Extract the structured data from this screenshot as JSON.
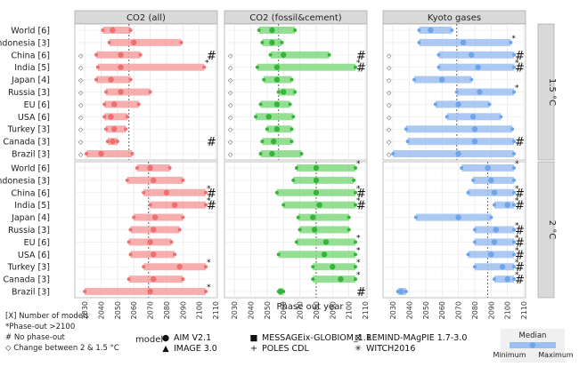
{
  "chart_data": {
    "type": "range-dot",
    "xlabel": "Phase out year",
    "xlim": [
      2025,
      2110
    ],
    "x_ticks": [
      2030,
      2040,
      2050,
      2060,
      2070,
      2080,
      2090,
      2100,
      2110
    ],
    "columns": [
      "CO2 (all)",
      "CO2 (fossil&cement)",
      "Kyoto gases"
    ],
    "column_colors": [
      "#f4a0a0",
      "#82d982",
      "#9cc0f0"
    ],
    "column_marker_colors": [
      "#ee6f6f",
      "#35b535",
      "#6da4ea"
    ],
    "panel_rows": [
      {
        "name": "1.5 °C",
        "countries": [
          "World [6]",
          "Indonesia [3]",
          "China [6]",
          "India [5]",
          "Japan [4]",
          "Russia [3]",
          "EU [6]",
          "USA [6]",
          "Turkey [3]",
          "Canada [3]",
          "Brazil [3]"
        ],
        "medians": [
          2057,
          2057,
          2069
        ],
        "cells": [
          [
            {
              "min": 2041,
              "max": 2058,
              "median": 2047,
              "no_phaseout": false,
              "changed": false
            },
            {
              "min": 2045,
              "max": 2089,
              "median": 2060,
              "no_phaseout": false,
              "changed": false
            },
            {
              "min": 2037,
              "max": 2064,
              "median": 2052,
              "no_phaseout": false,
              "changed": true
            },
            {
              "min": 2038,
              "max": 2103,
              "median": 2052,
              "no_phaseout": false,
              "changed": true,
              "phaseout_after_2100": true
            },
            {
              "min": 2037,
              "max": 2058,
              "median": 2046,
              "no_phaseout": false,
              "changed": true
            },
            {
              "min": 2043,
              "max": 2070,
              "median": 2052,
              "no_phaseout": false,
              "changed": true
            },
            {
              "min": 2042,
              "max": 2063,
              "median": 2048,
              "no_phaseout": false,
              "changed": true
            },
            {
              "min": 2042,
              "max": 2056,
              "median": 2046,
              "no_phaseout": false,
              "changed": true
            },
            {
              "min": 2043,
              "max": 2055,
              "median": 2048,
              "no_phaseout": false,
              "changed": true
            },
            {
              "min": 2044,
              "max": 2050,
              "median": 2047,
              "no_phaseout": false,
              "changed": true
            },
            {
              "min": 2031,
              "max": 2059,
              "median": 2040,
              "no_phaseout": false,
              "changed": true
            }
          ],
          [
            {
              "min": 2045,
              "max": 2067,
              "median": 2053,
              "no_phaseout": false,
              "changed": false
            },
            {
              "min": 2047,
              "max": 2059,
              "median": 2053,
              "no_phaseout": false,
              "changed": false
            },
            {
              "min": 2052,
              "max": 2088,
              "median": 2060,
              "no_phaseout": false,
              "changed": true
            },
            {
              "min": 2044,
              "max": 2104,
              "median": 2056,
              "no_phaseout": false,
              "changed": true,
              "phaseout_after_2100": true
            },
            {
              "min": 2048,
              "max": 2065,
              "median": 2056,
              "no_phaseout": false,
              "changed": true
            },
            {
              "min": 2057,
              "max": 2067,
              "median": 2060,
              "no_phaseout": false,
              "changed": true
            },
            {
              "min": 2046,
              "max": 2064,
              "median": 2056,
              "no_phaseout": false,
              "changed": true
            },
            {
              "min": 2043,
              "max": 2066,
              "median": 2051,
              "no_phaseout": false,
              "changed": true
            },
            {
              "min": 2050,
              "max": 2065,
              "median": 2056,
              "no_phaseout": false,
              "changed": true
            },
            {
              "min": 2047,
              "max": 2065,
              "median": 2054,
              "no_phaseout": false,
              "changed": true
            },
            {
              "min": 2046,
              "max": 2071,
              "median": 2053,
              "no_phaseout": false,
              "changed": true
            }
          ],
          [
            {
              "min": 2046,
              "max": 2066,
              "median": 2053,
              "no_phaseout": false,
              "changed": false
            },
            {
              "min": 2046,
              "max": 2102,
              "median": 2073,
              "no_phaseout": false,
              "changed": false,
              "phaseout_after_2100": true
            },
            {
              "min": 2058,
              "max": 2104,
              "median": 2078,
              "no_phaseout": false,
              "changed": true
            },
            {
              "min": 2058,
              "max": 2104,
              "median": 2082,
              "no_phaseout": false,
              "changed": true,
              "phaseout_after_2100": true
            },
            {
              "min": 2043,
              "max": 2078,
              "median": 2060,
              "no_phaseout": false,
              "changed": true
            },
            {
              "min": 2069,
              "max": 2104,
              "median": 2083,
              "no_phaseout": false,
              "changed": true,
              "phaseout_after_2100": true
            },
            {
              "min": 2056,
              "max": 2089,
              "median": 2070,
              "no_phaseout": false,
              "changed": true
            },
            {
              "min": 2063,
              "max": 2096,
              "median": 2079,
              "no_phaseout": false,
              "changed": true
            },
            {
              "min": 2038,
              "max": 2103,
              "median": 2080,
              "no_phaseout": false,
              "changed": true
            },
            {
              "min": 2039,
              "max": 2104,
              "median": 2080,
              "no_phaseout": false,
              "changed": true
            },
            {
              "min": 2030,
              "max": 2104,
              "median": 2070,
              "no_phaseout": false,
              "changed": true
            }
          ]
        ],
        "no_phaseout_marks": [
          "China [6]|CO2 (all)",
          "Canada [3]|CO2 (all)",
          "India [5]|CO2 (fossil&cement)",
          "China [6]|CO2 (fossil&cement)",
          "China [6]|Kyoto gases",
          "India [5]|Kyoto gases",
          "Canada [3]|Kyoto gases"
        ]
      },
      {
        "name": "2 °C",
        "countries": [
          "World [6]",
          "Indonesia [3]",
          "China [6]",
          "India [5]",
          "Japan [4]",
          "Russia [3]",
          "EU [6]",
          "USA [6]",
          "Turkey [3]",
          "Canada [3]",
          "Brazil [3]"
        ],
        "medians": [
          2069,
          2080,
          2088
        ],
        "cells": [
          [
            {
              "min": 2062,
              "max": 2082,
              "median": 2070,
              "no_phaseout": false,
              "changed": false
            },
            {
              "min": 2056,
              "max": 2090,
              "median": 2072,
              "no_phaseout": false,
              "changed": false
            },
            {
              "min": 2066,
              "max": 2104,
              "median": 2080,
              "no_phaseout": false,
              "changed": false,
              "phaseout_after_2100": true
            },
            {
              "min": 2070,
              "max": 2104,
              "median": 2085,
              "no_phaseout": false,
              "changed": false,
              "phaseout_after_2100": true
            },
            {
              "min": 2060,
              "max": 2090,
              "median": 2073,
              "no_phaseout": false,
              "changed": false
            },
            {
              "min": 2058,
              "max": 2088,
              "median": 2072,
              "no_phaseout": false,
              "changed": false
            },
            {
              "min": 2057,
              "max": 2083,
              "median": 2070,
              "no_phaseout": false,
              "changed": false
            },
            {
              "min": 2058,
              "max": 2085,
              "median": 2072,
              "no_phaseout": false,
              "changed": false
            },
            {
              "min": 2066,
              "max": 2104,
              "median": 2088,
              "no_phaseout": false,
              "changed": false,
              "phaseout_after_2100": true
            },
            {
              "min": 2057,
              "max": 2090,
              "median": 2072,
              "no_phaseout": false,
              "changed": false
            },
            {
              "min": 2030,
              "max": 2104,
              "median": 2070,
              "no_phaseout": false,
              "changed": false,
              "phaseout_after_2100": true
            }
          ],
          [
            {
              "min": 2068,
              "max": 2104,
              "median": 2080,
              "no_phaseout": false,
              "changed": false,
              "phaseout_after_2100": true
            },
            {
              "min": 2066,
              "max": 2103,
              "median": 2080,
              "no_phaseout": false,
              "changed": false
            },
            {
              "min": 2056,
              "max": 2104,
              "median": 2080,
              "no_phaseout": false,
              "changed": false,
              "phaseout_after_2100": true
            },
            {
              "min": 2060,
              "max": 2104,
              "median": 2082,
              "no_phaseout": false,
              "changed": false,
              "phaseout_after_2100": true
            },
            {
              "min": 2069,
              "max": 2100,
              "median": 2078,
              "no_phaseout": false,
              "changed": false
            },
            {
              "min": 2070,
              "max": 2100,
              "median": 2079,
              "no_phaseout": false,
              "changed": false
            },
            {
              "min": 2068,
              "max": 2104,
              "median": 2086,
              "no_phaseout": false,
              "changed": false,
              "phaseout_after_2100": true
            },
            {
              "min": 2057,
              "max": 2104,
              "median": 2085,
              "no_phaseout": false,
              "changed": false,
              "phaseout_after_2100": true
            },
            {
              "min": 2078,
              "max": 2104,
              "median": 2090,
              "no_phaseout": false,
              "changed": false,
              "phaseout_after_2100": true
            },
            {
              "min": 2078,
              "max": 2104,
              "median": 2095,
              "no_phaseout": false,
              "changed": false,
              "phaseout_after_2100": true
            },
            {
              "min": 2057,
              "max": 2060,
              "median": 2058,
              "no_phaseout": false,
              "changed": false
            }
          ],
          [
            {
              "min": 2072,
              "max": 2104,
              "median": 2088,
              "no_phaseout": false,
              "changed": false,
              "phaseout_after_2100": true
            },
            {
              "min": 2079,
              "max": 2104,
              "median": 2090,
              "no_phaseout": false,
              "changed": false
            },
            {
              "min": 2076,
              "max": 2104,
              "median": 2092,
              "no_phaseout": false,
              "changed": false,
              "phaseout_after_2100": true
            },
            {
              "min": 2092,
              "max": 2104,
              "median": 2100,
              "no_phaseout": false,
              "changed": false,
              "phaseout_after_2100": true
            },
            {
              "min": 2044,
              "max": 2090,
              "median": 2070,
              "no_phaseout": false,
              "changed": false
            },
            {
              "min": 2080,
              "max": 2104,
              "median": 2093,
              "no_phaseout": false,
              "changed": false,
              "phaseout_after_2100": true
            },
            {
              "min": 2080,
              "max": 2104,
              "median": 2092,
              "no_phaseout": false,
              "changed": false,
              "phaseout_after_2100": true
            },
            {
              "min": 2076,
              "max": 2104,
              "median": 2090,
              "no_phaseout": false,
              "changed": false,
              "phaseout_after_2100": true
            },
            {
              "min": 2080,
              "max": 2104,
              "median": 2097,
              "no_phaseout": false,
              "changed": false,
              "phaseout_after_2100": true
            },
            {
              "min": 2092,
              "max": 2104,
              "median": 2100,
              "no_phaseout": false,
              "changed": false,
              "phaseout_after_2100": true
            },
            {
              "min": 2033,
              "max": 2038,
              "median": 2035,
              "no_phaseout": false,
              "changed": false
            }
          ]
        ],
        "no_phaseout_marks": [
          "China [6]|CO2 (all)",
          "India [5]|CO2 (all)",
          "China [6]|CO2 (fossil&cement)",
          "India [5]|CO2 (fossil&cement)",
          "Brazil [3]|CO2 (fossil&cement)",
          "China [6]|Kyoto gases",
          "India [5]|Kyoto gases",
          "Russia [3]|Kyoto gases",
          "EU [6]|Kyoto gases",
          "USA [6]|Kyoto gases",
          "Turkey [3]|Kyoto gases",
          "Canada [3]|Kyoto gases"
        ]
      }
    ],
    "legend": {
      "notes": [
        "[X] Number of models",
        "*Phase-out >2100",
        "# No phase-out",
        "◇ Change between 2 & 1.5 °C"
      ],
      "model_title": "model",
      "models": [
        {
          "name": "AIM V2.1",
          "symbol": "●"
        },
        {
          "name": "IMAGE 3.0",
          "symbol": "▲"
        },
        {
          "name": "MESSAGEix-GLOBIOM_1.1",
          "symbol": "■"
        },
        {
          "name": "POLES CDL",
          "symbol": "+"
        },
        {
          "name": "REMIND-MAgPIE 1.7-3.0",
          "symbol": "⊠"
        },
        {
          "name": "WITCH2016",
          "symbol": "✳"
        }
      ],
      "range_key": {
        "title": "Median",
        "min_label": "Minimum",
        "max_label": "Maximum"
      }
    }
  }
}
